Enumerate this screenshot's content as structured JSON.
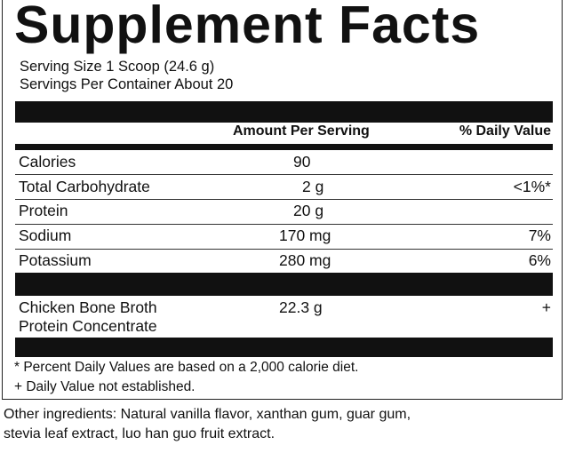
{
  "title": "Supplement Facts",
  "serving_size": "Serving Size 1 Scoop (24.6 g)",
  "servings_per_container": "Servings Per Container About 20",
  "header": {
    "amount": "Amount Per Serving",
    "dv": "% Daily Value"
  },
  "rows": [
    {
      "name": "Calories",
      "amount": "90",
      "dv": ""
    },
    {
      "name": "Total Carbohydrate",
      "amount": "2 g",
      "dv": "<1%*"
    },
    {
      "name": "Protein",
      "amount": "20 g",
      "dv": ""
    },
    {
      "name": "Sodium",
      "amount": "170 mg",
      "dv": "7%"
    },
    {
      "name": "Potassium",
      "amount": "280 mg",
      "dv": "6%"
    }
  ],
  "special": {
    "name_line1": "Chicken Bone Broth",
    "name_line2": "Protein Concentrate",
    "amount": "22.3 g",
    "dv": "+"
  },
  "footnotes": [
    "* Percent Daily Values are based on a 2,000 calorie diet.",
    "+ Daily Value not established."
  ],
  "other_ingredients_line1": "Other ingredients: Natural vanilla flavor, xanthan gum, guar gum,",
  "other_ingredients_line2": "stevia leaf extract, luo han guo fruit extract."
}
